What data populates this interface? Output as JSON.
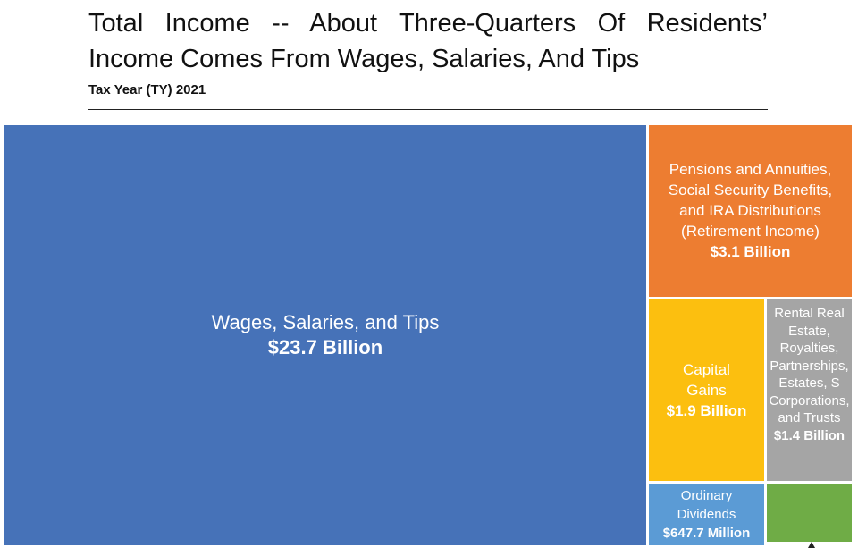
{
  "header": {
    "title": "Total Income -- About Three-Quarters Of Residents’ Income Comes From Wages, Salaries, And Tips",
    "subtitle": "Tax Year (TY) 2021"
  },
  "chart_data": {
    "type": "treemap",
    "title": "Total Income -- About Three-Quarters Of Residents’ Income Comes From Wages, Salaries, And Tips",
    "subtitle": "Tax Year (TY) 2021",
    "units": "USD",
    "items": [
      {
        "label": "Wages, Salaries, and Tips",
        "value_label": "$23.7 Billion",
        "value": 23.7,
        "color": "#4672b8"
      },
      {
        "label": "Pensions and Annuities, Social Security Benefits, and IRA Distributions (Retirement Income)",
        "value_label": "$3.1 Billion",
        "value": 3.1,
        "color": "#ed7d31"
      },
      {
        "label": "Capital Gains",
        "value_label": "$1.9 Billion",
        "value": 1.9,
        "color": "#fcbf0f"
      },
      {
        "label": "Rental Real Estate, Royalties, Partnerships, Estates, S Corporations, and Trusts",
        "value_label": "$1.4 Billion",
        "value": 1.4,
        "color": "#a5a5a5"
      },
      {
        "label": "Ordinary Dividends",
        "value_label": "$647.7 Million",
        "value": 0.6477,
        "color": "#5b9bd5"
      },
      {
        "label": "",
        "value_label": "",
        "value": null,
        "color": "#6fac46"
      }
    ]
  }
}
